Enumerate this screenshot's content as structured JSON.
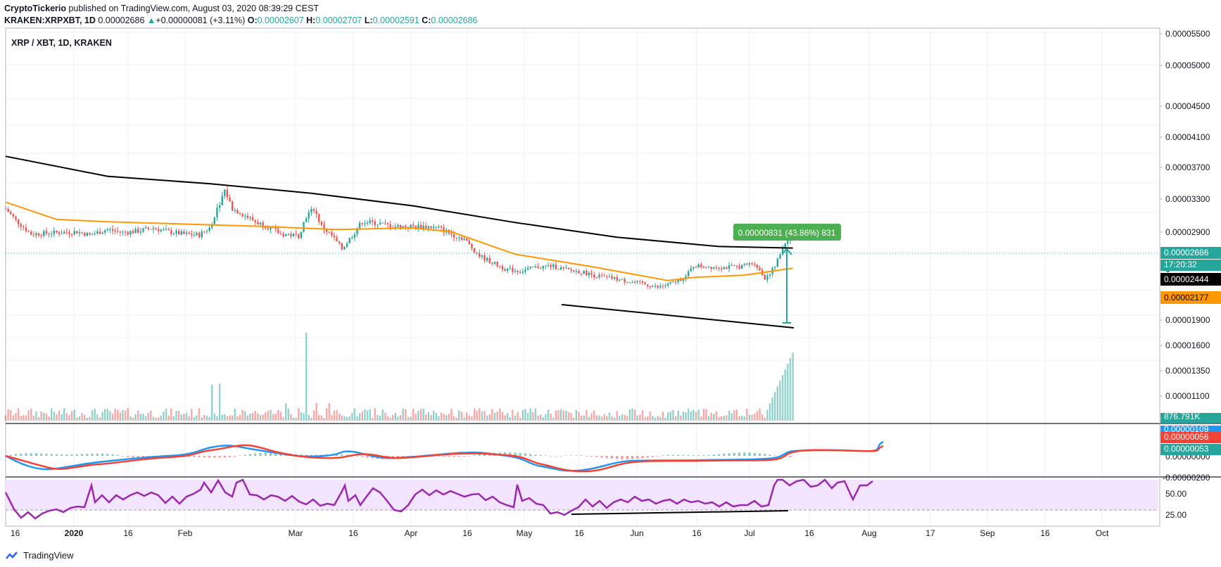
{
  "header": {
    "publisher": "CryptoTickerio",
    "published_text": "published on TradingView.com, August 03, 2020 08:39:29 CEST",
    "symbol": "KRAKEN:XRPXBT, 1D",
    "last": "0.00002686",
    "change": "+0.00000081 (+3.11%)",
    "o_label": "O:",
    "o_value": "0.00002607",
    "h_label": "H:",
    "h_value": "0.00002707",
    "l_label": "L:",
    "l_value": "0.00002591",
    "c_label": "C:",
    "c_value": "0.00002686"
  },
  "pane_title": "XRP / XBT, 1D, KRAKEN",
  "footer": {
    "brand": "TradingView"
  },
  "colors": {
    "up": "#26a69a",
    "down": "#ef5350",
    "ma200": "#000000",
    "ma50": "#ff9800",
    "macd": "#2196f3",
    "signal": "#f44336",
    "rsi": "#9c27b0",
    "rsi_band": "#f3e5ff",
    "grid": "#eef0f3",
    "border": "#b2b5be"
  },
  "chart_data": {
    "type": "candlestick",
    "symbol": "XRP / XBT",
    "interval": "1D",
    "exchange": "KRAKEN",
    "price_axis_ticks": [
      "0.00005500",
      "0.00005000",
      "0.00004500",
      "0.00004100",
      "0.00003700",
      "0.00003300",
      "0.00002900",
      "0.00002686",
      "0.00002444",
      "0.00002177",
      "0.00001900",
      "0.00001600",
      "0.00001350",
      "0.00001100"
    ],
    "price_labels": {
      "last": "0.00002686",
      "countdown": "17:20:32",
      "ma200": "0.00002444",
      "ma50": "0.00002177",
      "partial_tick": "0"
    },
    "x_axis_labels": [
      "16",
      "2020",
      "16",
      "Feb",
      "Mar",
      "16",
      "Apr",
      "16",
      "May",
      "16",
      "Jun",
      "16",
      "Jul",
      "16",
      "Aug",
      "17",
      "Sep",
      "16",
      "Oct"
    ],
    "measure_label": "0.00000831 (43.86%) 831",
    "volume_label": "876.791K",
    "macd_labels": [
      "0.00000109",
      "0.00000056",
      "0.00000053",
      "0.00000000",
      "-0.00000200"
    ],
    "rsi_labels": [
      "50.00",
      "25.00"
    ],
    "close_series": [
      [
        0,
        2.95e-05
      ],
      [
        4,
        2.8e-05
      ],
      [
        10,
        2.62e-05
      ],
      [
        20,
        2.64e-05
      ],
      [
        28,
        2.65e-05
      ],
      [
        33,
        2.61e-05
      ],
      [
        40,
        2.68e-05
      ],
      [
        46,
        2.64e-05
      ],
      [
        52,
        2.66e-05
      ],
      [
        58,
        2.7e-05
      ],
      [
        64,
        2.65e-05
      ],
      [
        70,
        2.62e-05
      ],
      [
        76,
        2.61e-05
      ],
      [
        80,
        2.7e-05
      ],
      [
        83,
        2.95e-05
      ],
      [
        86,
        3.2e-05
      ],
      [
        89,
        2.95e-05
      ],
      [
        92,
        2.9e-05
      ],
      [
        98,
        2.78e-05
      ],
      [
        104,
        2.7e-05
      ],
      [
        108,
        2.62e-05
      ],
      [
        115,
        2.6e-05
      ],
      [
        118,
        2.85e-05
      ],
      [
        121,
        2.95e-05
      ],
      [
        124,
        2.72e-05
      ],
      [
        128,
        2.6e-05
      ],
      [
        132,
        2.43e-05
      ],
      [
        136,
        2.6e-05
      ],
      [
        140,
        2.78e-05
      ],
      [
        146,
        2.76e-05
      ],
      [
        152,
        2.72e-05
      ],
      [
        158,
        2.72e-05
      ],
      [
        164,
        2.72e-05
      ],
      [
        170,
        2.7e-05
      ],
      [
        175,
        2.62e-05
      ],
      [
        180,
        2.56e-05
      ],
      [
        182,
        2.48e-05
      ],
      [
        186,
        2.34e-05
      ],
      [
        190,
        2.27e-05
      ],
      [
        196,
        2.17e-05
      ],
      [
        202,
        2.14e-05
      ],
      [
        208,
        2.19e-05
      ],
      [
        214,
        2.21e-05
      ],
      [
        220,
        2.16e-05
      ],
      [
        226,
        2.13e-05
      ],
      [
        232,
        2.08e-05
      ],
      [
        238,
        2.05e-05
      ],
      [
        244,
        2.01e-05
      ],
      [
        250,
        1.98e-05
      ],
      [
        256,
        1.93e-05
      ],
      [
        262,
        1.99e-05
      ],
      [
        267,
        2.07e-05
      ],
      [
        270,
        2.21e-05
      ],
      [
        276,
        2.2e-05
      ],
      [
        282,
        2.19e-05
      ],
      [
        288,
        2.2e-05
      ],
      [
        294,
        2.25e-05
      ],
      [
        298,
        2.05e-05
      ],
      [
        302,
        2.2e-05
      ],
      [
        305,
        2.45e-05
      ],
      [
        308,
        2.61e-05
      ],
      [
        309,
        2.686e-05
      ]
    ],
    "ma200_series": [
      [
        0,
        3.66e-05
      ],
      [
        40,
        3.39e-05
      ],
      [
        80,
        3.29e-05
      ],
      [
        120,
        3.16e-05
      ],
      [
        160,
        2.99e-05
      ],
      [
        200,
        2.77e-05
      ],
      [
        240,
        2.58e-05
      ],
      [
        280,
        2.46e-05
      ],
      [
        309,
        2.44e-05
      ]
    ],
    "ma50_series": [
      [
        0,
        3.04e-05
      ],
      [
        20,
        2.81e-05
      ],
      [
        40,
        2.78e-05
      ],
      [
        70,
        2.75e-05
      ],
      [
        100,
        2.72e-05
      ],
      [
        130,
        2.68e-05
      ],
      [
        160,
        2.7e-05
      ],
      [
        175,
        2.65e-05
      ],
      [
        200,
        2.36e-05
      ],
      [
        230,
        2.2e-05
      ],
      [
        260,
        2.02e-05
      ],
      [
        270,
        2.06e-05
      ],
      [
        290,
        2.09e-05
      ],
      [
        309,
        2.18e-05
      ]
    ]
  }
}
